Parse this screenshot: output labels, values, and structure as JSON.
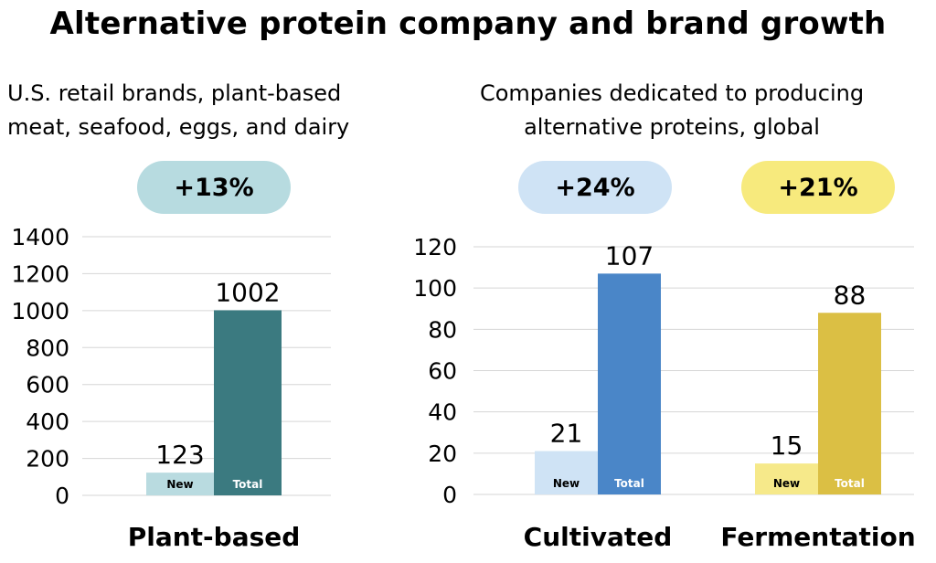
{
  "title": "Alternative protein company and brand growth",
  "colors": {
    "plant_new": "#b9dbe0",
    "plant_total": "#3b7a80",
    "cult_new": "#cfe3f5",
    "cult_total": "#4a86c8",
    "ferm_new": "#f6e98a",
    "ferm_total": "#dbbf44",
    "pill_plant": "#b7dbe0",
    "pill_cult": "#cfe3f5",
    "pill_ferm": "#f7ea7d",
    "grid": "#d6d6d6"
  },
  "chart_data": [
    {
      "type": "bar",
      "subtitle": "U.S. retail brands, plant-based meat, seafood, eggs, and dairy",
      "growth_badge": "+13%",
      "ylim": [
        0,
        1400
      ],
      "yticks": [
        "0",
        "200",
        "400",
        "600",
        "800",
        "1000",
        "1200",
        "1400"
      ],
      "grid": true,
      "groups": [
        {
          "category": "Plant-based",
          "bars": [
            {
              "label": "New",
              "value": 123
            },
            {
              "label": "Total",
              "value": 1002
            }
          ]
        }
      ]
    },
    {
      "type": "bar",
      "subtitle": "Companies dedicated to producing alternative proteins, global",
      "ylim": [
        0,
        120
      ],
      "yticks": [
        "0",
        "20",
        "40",
        "60",
        "80",
        "100",
        "120"
      ],
      "grid": true,
      "groups": [
        {
          "category": "Cultivated",
          "growth_badge": "+24%",
          "bars": [
            {
              "label": "New",
              "value": 21
            },
            {
              "label": "Total",
              "value": 107
            }
          ]
        },
        {
          "category": "Fermentation",
          "growth_badge": "+21%",
          "bars": [
            {
              "label": "New",
              "value": 15
            },
            {
              "label": "Total",
              "value": 88
            }
          ]
        }
      ]
    }
  ]
}
